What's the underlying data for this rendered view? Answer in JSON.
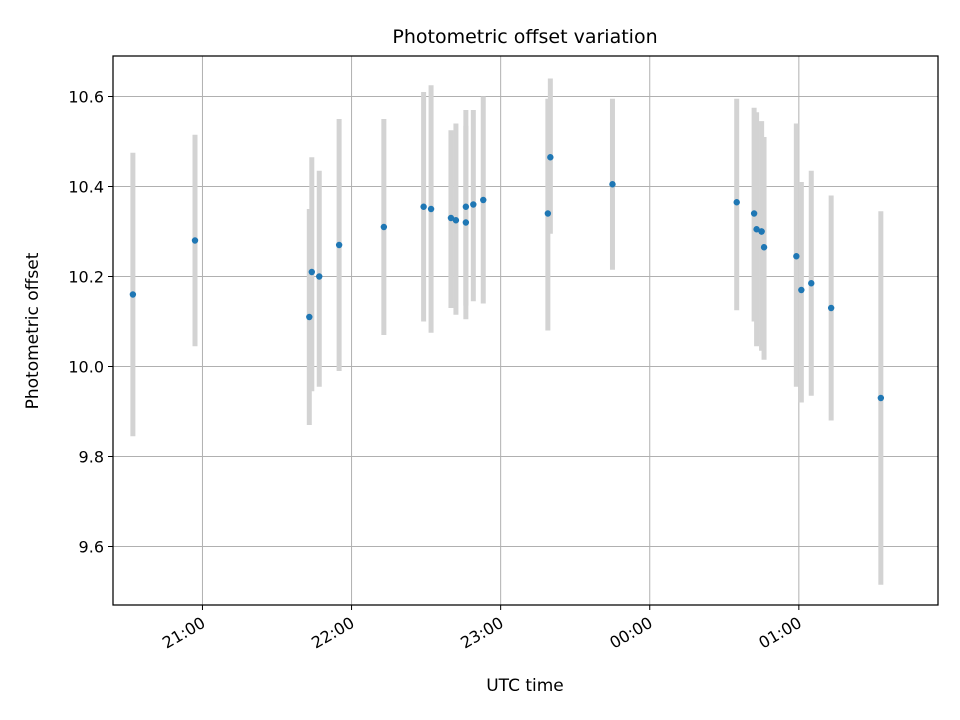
{
  "chart_data": {
    "type": "scatter",
    "title": "Photometric offset variation",
    "xlabel": "UTC time",
    "ylabel": "Photometric offset",
    "x_unit": "UTC time (HH:MM)",
    "x_ticks": [
      "21:00",
      "22:00",
      "23:00",
      "00:00",
      "01:00"
    ],
    "x_tick_values": [
      "21:00",
      "22:00",
      "23:00",
      "24:00",
      "25:00"
    ],
    "xlim": [
      "20:24",
      "25:56"
    ],
    "ylim": [
      9.47,
      10.69
    ],
    "y_ticks": [
      9.6,
      9.8,
      10.0,
      10.2,
      10.4,
      10.6
    ],
    "y_tick_labels": [
      "9.6",
      "9.8",
      "10.0",
      "10.2",
      "10.4",
      "10.6"
    ],
    "grid": true,
    "legend": "none",
    "marker_color": "#1f77b4",
    "errorbar_color": "#d3d3d3",
    "series": [
      {
        "x": [
          "20:32",
          "20:57",
          "21:43",
          "21:44",
          "21:47",
          "21:55",
          "22:13",
          "22:29",
          "22:32",
          "22:40",
          "22:42",
          "22:46",
          "22:46",
          "22:49",
          "22:53",
          "23:19",
          "23:20",
          "23:45",
          "24:35",
          "24:42",
          "24:43",
          "24:45",
          "24:45",
          "24:46",
          "24:59",
          "25:01",
          "25:05",
          "25:13",
          "25:33"
        ],
        "y": [
          10.16,
          10.28,
          10.11,
          10.21,
          10.2,
          10.27,
          10.31,
          10.355,
          10.35,
          10.33,
          10.325,
          10.355,
          10.32,
          10.36,
          10.37,
          10.34,
          10.465,
          10.405,
          10.365,
          10.34,
          10.305,
          10.3,
          10.3,
          10.265,
          10.245,
          10.17,
          10.185,
          10.13,
          9.93
        ],
        "yerr_low": [
          9.845,
          10.045,
          9.87,
          9.945,
          9.955,
          9.99,
          10.07,
          10.1,
          10.075,
          10.13,
          10.115,
          10.105,
          10.135,
          10.145,
          10.14,
          10.08,
          10.295,
          10.215,
          10.125,
          10.1,
          10.045,
          10.05,
          10.035,
          10.015,
          9.955,
          9.92,
          9.935,
          9.88,
          9.515
        ],
        "yerr_high": [
          10.475,
          10.515,
          10.35,
          10.465,
          10.435,
          10.55,
          10.55,
          10.61,
          10.625,
          10.525,
          10.54,
          10.57,
          10.535,
          10.57,
          10.6,
          10.595,
          10.64,
          10.595,
          10.595,
          10.575,
          10.565,
          10.545,
          10.545,
          10.51,
          10.54,
          10.41,
          10.435,
          10.38,
          10.345
        ]
      }
    ]
  }
}
